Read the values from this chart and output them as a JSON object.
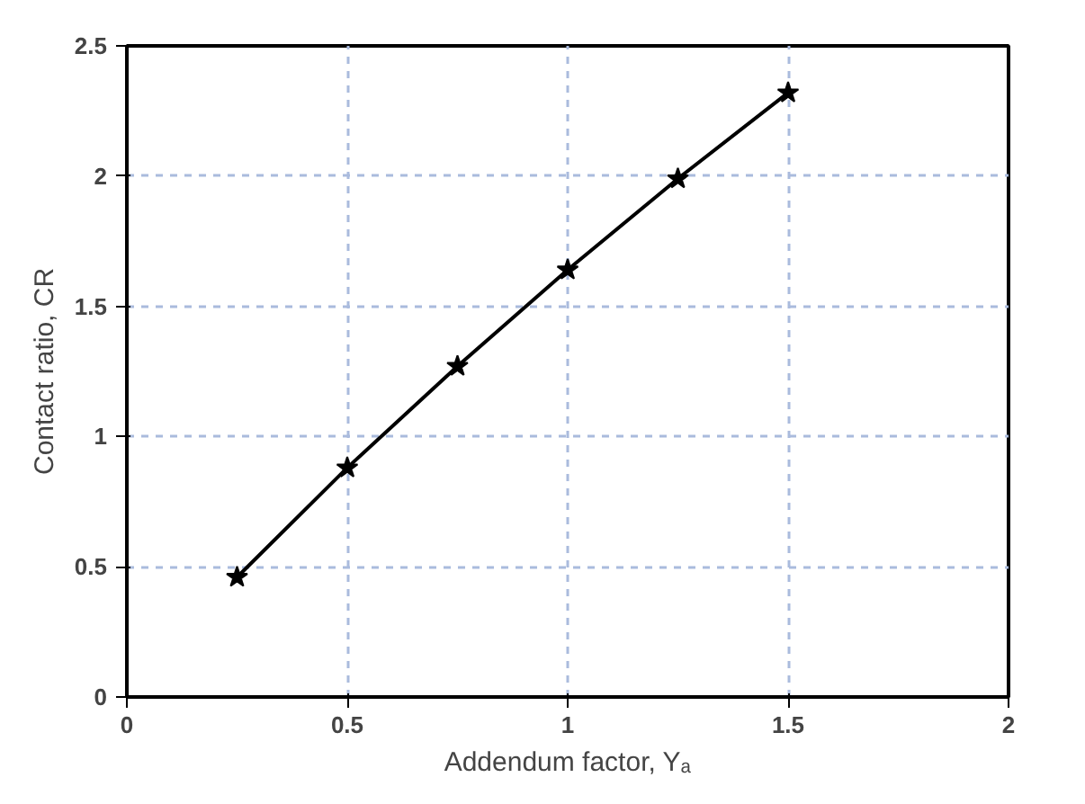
{
  "chart_data": {
    "type": "line",
    "xlabel": "Addendum factor, Yₐ",
    "ylabel": "Contact ratio, CR",
    "x": [
      0.25,
      0.5,
      0.75,
      1,
      1.25,
      1.5
    ],
    "series": [
      {
        "color": "#000000",
        "values": [
          0.46,
          0.88,
          1.27,
          1.64,
          1.99,
          2.32
        ]
      }
    ],
    "xlim": [
      0,
      2
    ],
    "xticks": [
      0,
      0.5,
      1,
      1.5,
      2
    ],
    "ylim": [
      0,
      2.5
    ],
    "yticks": [
      0,
      0.5,
      1,
      1.5,
      2,
      2.5
    ],
    "grid": true,
    "marker": "star",
    "line_style": "solid"
  }
}
